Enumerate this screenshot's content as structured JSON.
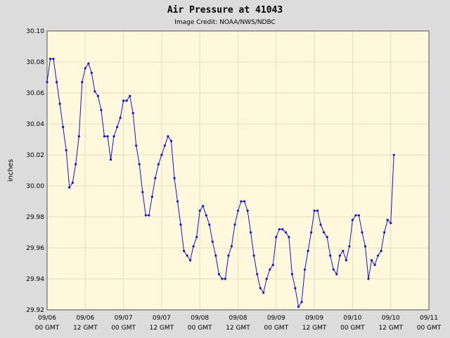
{
  "chart_data": {
    "type": "line",
    "title": "Air Pressure at 41043",
    "subtitle": "Image Credit: NOAA/NWS/NDBC",
    "ylabel": "inches",
    "xlabel": "",
    "ylim": [
      29.92,
      30.1
    ],
    "yticks": [
      "30.10",
      "30.08",
      "30.06",
      "30.04",
      "30.02",
      "30.00",
      "29.98",
      "29.96",
      "29.94",
      "29.92"
    ],
    "xlim": [
      "09/06 00 GMT",
      "09/11 00 GMT"
    ],
    "xticks": [
      {
        "date": "09/06",
        "time": "00 GMT"
      },
      {
        "date": "09/06",
        "time": "12 GMT"
      },
      {
        "date": "09/07",
        "time": "00 GMT"
      },
      {
        "date": "09/07",
        "time": "12 GMT"
      },
      {
        "date": "09/08",
        "time": "00 GMT"
      },
      {
        "date": "09/08",
        "time": "12 GMT"
      },
      {
        "date": "09/09",
        "time": "00 GMT"
      },
      {
        "date": "09/09",
        "time": "12 GMT"
      },
      {
        "date": "09/10",
        "time": "00 GMT"
      },
      {
        "date": "09/10",
        "time": "12 GMT"
      },
      {
        "date": "09/11",
        "time": "00 GMT"
      }
    ],
    "grid": true,
    "colors": {
      "background": "#dcdcdc",
      "plot": "#fff8dc",
      "line": "#1414cc",
      "grid": "#e8dcc0"
    },
    "series": [
      {
        "x_unit": "hours after 09/06 00 GMT",
        "points": [
          [
            0,
            30.067
          ],
          [
            1,
            30.082
          ],
          [
            2,
            30.082
          ],
          [
            3,
            30.067
          ],
          [
            4,
            30.053
          ],
          [
            5,
            30.038
          ],
          [
            6,
            30.023
          ],
          [
            7,
            29.999
          ],
          [
            8,
            30.002
          ],
          [
            9,
            30.014
          ],
          [
            10,
            30.032
          ],
          [
            11,
            30.067
          ],
          [
            12,
            30.076
          ],
          [
            13,
            30.079
          ],
          [
            14,
            30.073
          ],
          [
            15,
            30.061
          ],
          [
            16,
            30.058
          ],
          [
            17,
            30.049
          ],
          [
            18,
            30.032
          ],
          [
            19,
            30.032
          ],
          [
            20,
            30.017
          ],
          [
            21,
            30.032
          ],
          [
            22,
            30.038
          ],
          [
            23,
            30.044
          ],
          [
            24,
            30.055
          ],
          [
            25,
            30.055
          ],
          [
            26,
            30.058
          ],
          [
            27,
            30.047
          ],
          [
            28,
            30.026
          ],
          [
            29,
            30.014
          ],
          [
            30,
            29.996
          ],
          [
            31,
            29.981
          ],
          [
            32,
            29.981
          ],
          [
            33,
            29.993
          ],
          [
            34,
            30.005
          ],
          [
            35,
            30.014
          ],
          [
            36,
            30.02
          ],
          [
            37,
            30.026
          ],
          [
            38,
            30.032
          ],
          [
            39,
            30.029
          ],
          [
            40,
            30.005
          ],
          [
            41,
            29.99
          ],
          [
            42,
            29.975
          ],
          [
            43,
            29.958
          ],
          [
            44,
            29.955
          ],
          [
            45,
            29.952
          ],
          [
            46,
            29.961
          ],
          [
            47,
            29.967
          ],
          [
            48,
            29.984
          ],
          [
            49,
            29.987
          ],
          [
            50,
            29.981
          ],
          [
            51,
            29.975
          ],
          [
            52,
            29.964
          ],
          [
            53,
            29.955
          ],
          [
            54,
            29.943
          ],
          [
            55,
            29.94
          ],
          [
            56,
            29.94
          ],
          [
            57,
            29.955
          ],
          [
            58,
            29.961
          ],
          [
            59,
            29.975
          ],
          [
            60,
            29.984
          ],
          [
            61,
            29.99
          ],
          [
            62,
            29.99
          ],
          [
            63,
            29.984
          ],
          [
            64,
            29.97
          ],
          [
            65,
            29.955
          ],
          [
            66,
            29.943
          ],
          [
            67,
            29.934
          ],
          [
            68,
            29.931
          ],
          [
            69,
            29.94
          ],
          [
            70,
            29.946
          ],
          [
            71,
            29.949
          ],
          [
            72,
            29.967
          ],
          [
            73,
            29.972
          ],
          [
            74,
            29.972
          ],
          [
            75,
            29.97
          ],
          [
            76,
            29.967
          ],
          [
            77,
            29.943
          ],
          [
            78,
            29.934
          ],
          [
            79,
            29.922
          ],
          [
            80,
            29.925
          ],
          [
            81,
            29.946
          ],
          [
            82,
            29.958
          ],
          [
            83,
            29.97
          ],
          [
            84,
            29.984
          ],
          [
            85,
            29.984
          ],
          [
            86,
            29.975
          ],
          [
            87,
            29.97
          ],
          [
            88,
            29.967
          ],
          [
            89,
            29.955
          ],
          [
            90,
            29.946
          ],
          [
            91,
            29.943
          ],
          [
            92,
            29.955
          ],
          [
            93,
            29.958
          ],
          [
            94,
            29.952
          ],
          [
            95,
            29.961
          ],
          [
            96,
            29.978
          ],
          [
            97,
            29.981
          ],
          [
            98,
            29.981
          ],
          [
            99,
            29.97
          ],
          [
            100,
            29.961
          ],
          [
            101,
            29.94
          ],
          [
            102,
            29.952
          ],
          [
            103,
            29.949
          ],
          [
            104,
            29.955
          ],
          [
            105,
            29.958
          ],
          [
            106,
            29.97
          ],
          [
            107,
            29.978
          ],
          [
            108,
            29.976
          ],
          [
            109,
            30.02
          ]
        ]
      }
    ]
  }
}
